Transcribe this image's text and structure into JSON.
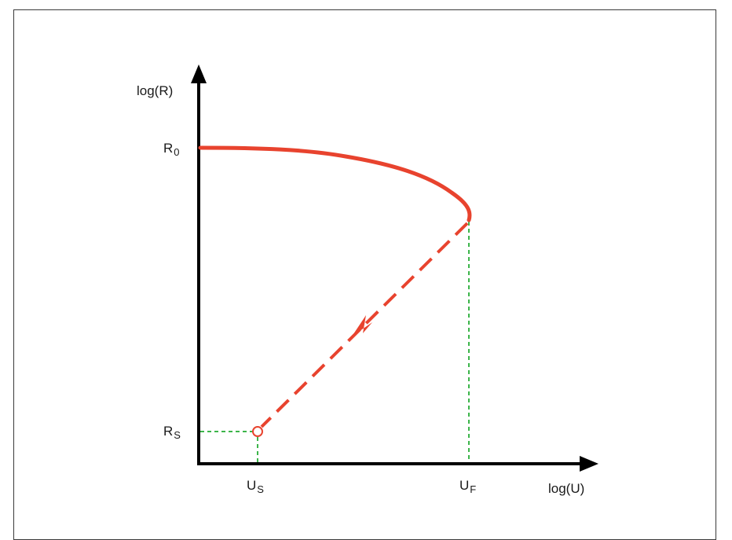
{
  "diagram": {
    "y_axis_label": "log(R)",
    "x_axis_label": "log(U)",
    "r0": {
      "base": "R",
      "sub": "0"
    },
    "rs": {
      "base": "R",
      "sub": "S"
    },
    "us": {
      "base": "U",
      "sub": "S"
    },
    "uf": {
      "base": "U",
      "sub": "F"
    }
  },
  "colors": {
    "axis": "#000000",
    "curve": "#e8432e",
    "guide": "#3cb54a"
  }
}
